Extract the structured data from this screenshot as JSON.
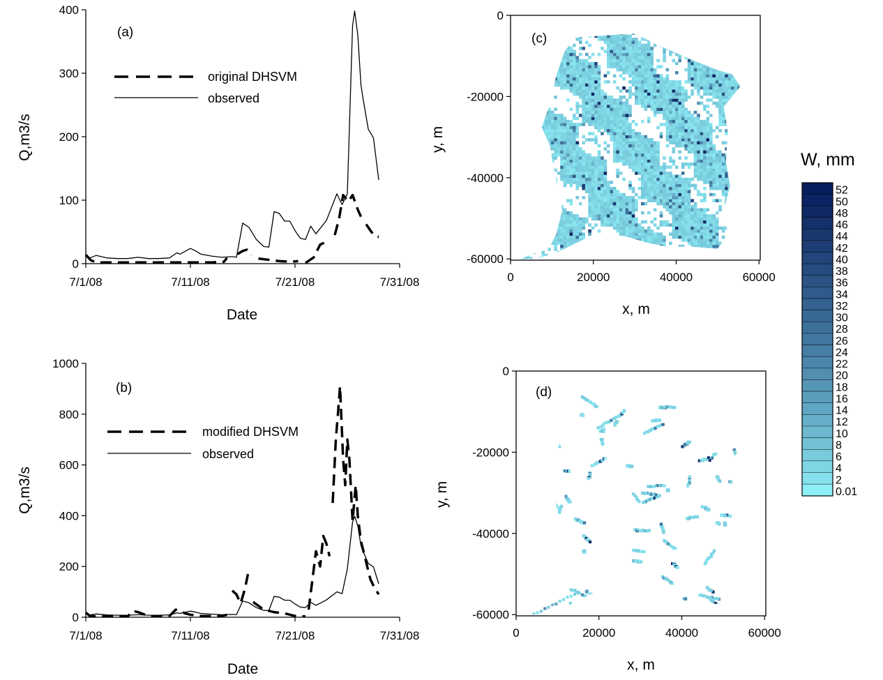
{
  "chart_data": [
    {
      "panel": "(a)",
      "type": "line",
      "xlabel": "Date",
      "ylabel": "Q,m3/s",
      "x_tick_labels": [
        "7/1/08",
        "7/11/08",
        "7/21/08",
        "7/31/08"
      ],
      "x_ticks_day": [
        0,
        10,
        20,
        30
      ],
      "xlim_day": [
        0,
        30
      ],
      "ylim": [
        0,
        400
      ],
      "y_ticks": [
        0,
        100,
        200,
        300,
        400
      ],
      "legend": [
        "original DHSVM",
        "observed"
      ],
      "series": [
        {
          "name": "original DHSVM",
          "style": "dashed",
          "segments": [
            [
              [
                0,
                14
              ],
              [
                0.5,
                5
              ],
              [
                1,
                2
              ],
              [
                2,
                2
              ],
              [
                4,
                2
              ],
              [
                6,
                2
              ],
              [
                8,
                2
              ],
              [
                10,
                2
              ],
              [
                12,
                2
              ],
              [
                13.2,
                3
              ],
              [
                13.5,
                9
              ]
            ],
            [
              [
                14.5,
                15
              ],
              [
                15,
                20
              ],
              [
                15.4,
                22
              ],
              [
                15.8,
                13
              ]
            ],
            [
              [
                16.5,
                8
              ],
              [
                17.5,
                6
              ],
              [
                18.5,
                4
              ],
              [
                19.5,
                3
              ],
              [
                20.3,
                4
              ]
            ],
            [
              [
                21,
                1
              ],
              [
                21.8,
                10
              ],
              [
                22.4,
                30
              ],
              [
                22.8,
                33
              ],
              [
                23.2,
                34
              ]
            ],
            [
              [
                23.8,
                45
              ],
              [
                24.2,
                70
              ],
              [
                24.6,
                108
              ],
              [
                25.1,
                98
              ],
              [
                25.5,
                108
              ],
              [
                26,
                85
              ],
              [
                26.3,
                74
              ]
            ],
            [
              [
                26.8,
                62
              ],
              [
                27.3,
                50
              ],
              [
                27.6,
                44
              ],
              [
                28,
                42
              ]
            ]
          ]
        },
        {
          "name": "observed",
          "style": "solid",
          "segments": [
            [
              [
                0,
                14
              ],
              [
                0.4,
                9
              ],
              [
                1,
                13
              ],
              [
                2,
                9
              ],
              [
                3,
                8
              ],
              [
                4,
                8
              ],
              [
                5,
                10
              ],
              [
                6,
                8
              ],
              [
                7,
                8
              ],
              [
                8,
                9
              ],
              [
                8.7,
                17
              ],
              [
                9,
                15
              ],
              [
                10,
                24
              ],
              [
                10.5,
                20
              ],
              [
                11,
                15
              ],
              [
                12,
                12
              ],
              [
                13,
                10
              ],
              [
                14,
                11
              ],
              [
                14.4,
                10
              ],
              [
                15,
                64
              ],
              [
                15.6,
                57
              ],
              [
                16.3,
                38
              ],
              [
                17,
                27
              ],
              [
                17.5,
                26
              ],
              [
                18,
                82
              ],
              [
                18.5,
                79
              ],
              [
                19,
                67
              ],
              [
                19.5,
                67
              ],
              [
                20,
                52
              ],
              [
                20.5,
                40
              ],
              [
                21,
                38
              ],
              [
                21.5,
                59
              ],
              [
                22,
                47
              ],
              [
                23,
                68
              ],
              [
                24,
                110
              ],
              [
                24.5,
                93
              ],
              [
                25,
                110
              ],
              [
                25.5,
                375
              ],
              [
                25.7,
                398
              ],
              [
                26,
                360
              ],
              [
                26.3,
                282
              ],
              [
                26.5,
                260
              ],
              [
                27,
                212
              ],
              [
                27.5,
                198
              ],
              [
                27.8,
                158
              ],
              [
                28,
                132
              ]
            ]
          ]
        }
      ]
    },
    {
      "panel": "(b)",
      "type": "line",
      "xlabel": "Date",
      "ylabel": "Q,m3/s",
      "x_tick_labels": [
        "7/1/08",
        "7/11/08",
        "7/21/08",
        "7/31/08"
      ],
      "x_ticks_day": [
        0,
        10,
        20,
        30
      ],
      "xlim_day": [
        0,
        30
      ],
      "ylim": [
        0,
        1000
      ],
      "y_ticks": [
        0,
        200,
        400,
        600,
        800,
        1000
      ],
      "legend": [
        "modified DHSVM",
        "observed"
      ],
      "series": [
        {
          "name": "modified DHSVM",
          "style": "dashed",
          "segments": [
            [
              [
                0,
                18
              ],
              [
                0.4,
                5
              ],
              [
                1,
                3
              ],
              [
                2,
                3
              ],
              [
                3,
                3
              ],
              [
                4,
                3
              ],
              [
                4.5,
                25
              ],
              [
                5,
                20
              ],
              [
                6,
                5
              ],
              [
                7,
                5
              ],
              [
                8,
                5
              ],
              [
                8.6,
                30
              ],
              [
                9,
                25
              ],
              [
                9.5,
                15
              ],
              [
                10,
                10
              ],
              [
                11,
                5
              ],
              [
                12,
                5
              ],
              [
                13,
                5
              ],
              [
                13.5,
                10
              ]
            ],
            [
              [
                14,
                105
              ],
              [
                14.4,
                90
              ],
              [
                14.8,
                55
              ],
              [
                15.2,
                110
              ],
              [
                15.5,
                170
              ]
            ],
            [
              [
                16,
                60
              ],
              [
                17,
                30
              ],
              [
                18,
                20
              ],
              [
                19,
                15
              ],
              [
                20,
                5
              ],
              [
                21,
                3
              ]
            ],
            [
              [
                21.3,
                30
              ],
              [
                21.7,
                160
              ],
              [
                22,
                260
              ],
              [
                22.4,
                200
              ],
              [
                22.7,
                320
              ],
              [
                23,
                290
              ],
              [
                23.3,
                240
              ]
            ],
            [
              [
                23.6,
                450
              ],
              [
                23.9,
                700
              ],
              [
                24.1,
                800
              ],
              [
                24.3,
                910
              ],
              [
                24.6,
                620
              ],
              [
                24.8,
                520
              ],
              [
                25,
                700
              ],
              [
                25.2,
                620
              ],
              [
                25.5,
                380
              ],
              [
                25.8,
                520
              ],
              [
                26,
                400
              ],
              [
                26.3,
                300
              ],
              [
                26.6,
                250
              ],
              [
                26.9,
                200
              ],
              [
                27.2,
                150
              ],
              [
                27.6,
                115
              ],
              [
                28,
                90
              ]
            ]
          ]
        },
        {
          "name": "observed",
          "style": "solid",
          "segments": [
            [
              [
                0,
                14
              ],
              [
                0.4,
                9
              ],
              [
                1,
                13
              ],
              [
                2,
                9
              ],
              [
                3,
                8
              ],
              [
                4,
                8
              ],
              [
                5,
                10
              ],
              [
                6,
                8
              ],
              [
                7,
                8
              ],
              [
                8,
                9
              ],
              [
                8.7,
                17
              ],
              [
                9,
                15
              ],
              [
                10,
                24
              ],
              [
                10.5,
                20
              ],
              [
                11,
                15
              ],
              [
                12,
                12
              ],
              [
                13,
                10
              ],
              [
                14,
                11
              ],
              [
                14.4,
                10
              ],
              [
                15,
                64
              ],
              [
                15.6,
                57
              ],
              [
                16.3,
                38
              ],
              [
                17,
                27
              ],
              [
                17.5,
                26
              ],
              [
                18,
                82
              ],
              [
                18.5,
                79
              ],
              [
                19,
                67
              ],
              [
                19.5,
                67
              ],
              [
                20,
                52
              ],
              [
                20.5,
                40
              ],
              [
                21,
                38
              ],
              [
                21.5,
                59
              ],
              [
                22,
                47
              ],
              [
                23,
                68
              ],
              [
                24,
                100
              ],
              [
                24.5,
                93
              ],
              [
                25,
                190
              ],
              [
                25.5,
                375
              ],
              [
                25.7,
                398
              ],
              [
                26,
                360
              ],
              [
                26.3,
                282
              ],
              [
                26.5,
                260
              ],
              [
                27,
                212
              ],
              [
                27.5,
                198
              ],
              [
                27.8,
                158
              ],
              [
                28,
                132
              ]
            ]
          ]
        }
      ]
    },
    {
      "panel": "(c)",
      "type": "heatmap",
      "xlabel": "x, m",
      "ylabel": "y, m",
      "xlim": [
        0,
        60000
      ],
      "ylim": [
        -60000,
        0
      ],
      "x_ticks": [
        0,
        20000,
        40000,
        60000
      ],
      "y_ticks": [
        0,
        -20000,
        -40000,
        -60000
      ],
      "values_mm": [
        [
          3,
          30
        ],
        [
          8,
          42
        ],
        [
          12,
          36
        ],
        [
          20,
          44
        ],
        [
          4,
          50
        ],
        [
          15,
          46
        ],
        [
          6,
          38
        ]
      ]
    },
    {
      "panel": "(d)",
      "type": "heatmap",
      "xlabel": "x, m",
      "ylabel": "y, m",
      "xlim": [
        0,
        60000
      ],
      "ylim": [
        -60000,
        0
      ],
      "x_ticks": [
        0,
        20000,
        40000,
        60000
      ],
      "y_ticks": [
        0,
        -20000,
        -40000,
        -60000
      ],
      "values_mm": [
        [
          5,
          50
        ],
        [
          10,
          44
        ],
        [
          3,
          46
        ]
      ]
    },
    {
      "type": "colorbar",
      "title": "W, mm",
      "labels": [
        "52",
        "50",
        "48",
        "46",
        "44",
        "42",
        "40",
        "38",
        "36",
        "34",
        "32",
        "30",
        "28",
        "26",
        "24",
        "22",
        "20",
        "18",
        "16",
        "14",
        "12",
        "10",
        "8",
        "6",
        "4",
        "2",
        "0.01"
      ],
      "color_low": "#90f0f8",
      "color_high": "#061a5a"
    }
  ]
}
